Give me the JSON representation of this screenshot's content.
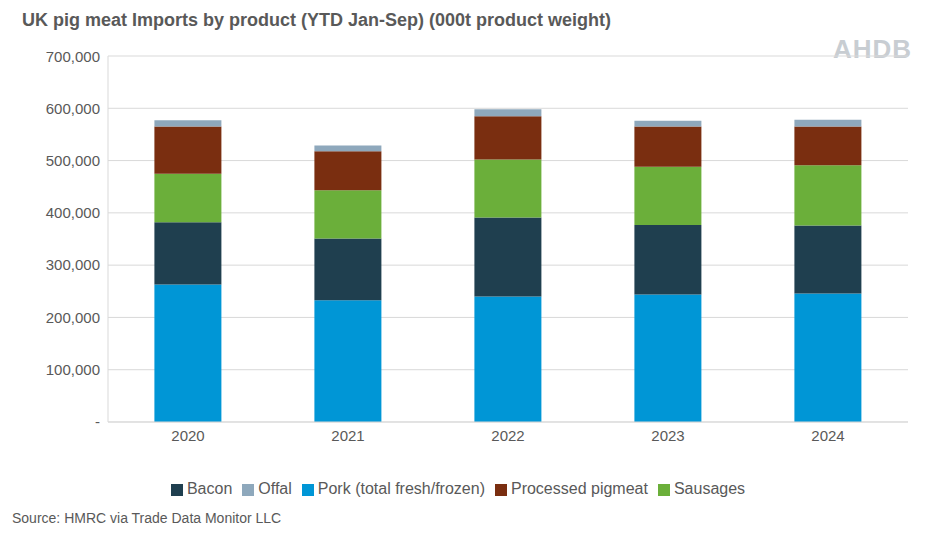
{
  "chart_data": {
    "type": "bar",
    "title": "UK pig meat Imports by product (YTD Jan-Sep) (000t product weight)",
    "logo": "AHDB",
    "source": "Source: HMRC via Trade Data Monitor LLC",
    "stacked": true,
    "grid": true,
    "legend": "bottom",
    "categories": [
      "2020",
      "2021",
      "2022",
      "2023",
      "2024"
    ],
    "series": [
      {
        "name": "Pork (total fresh/frozen)",
        "color": "#0096D6",
        "values": [
          263000,
          233000,
          240000,
          244000,
          246000
        ]
      },
      {
        "name": "Bacon",
        "color": "#1F3F4F",
        "values": [
          119000,
          118000,
          151000,
          133000,
          130000
        ]
      },
      {
        "name": "Sausages",
        "color": "#6BAF3A",
        "values": [
          93000,
          92000,
          111000,
          111000,
          115000
        ]
      },
      {
        "name": "Processed pigmeat",
        "color": "#7A2E10",
        "values": [
          90000,
          75000,
          83000,
          77000,
          74000
        ]
      },
      {
        "name": "Offal",
        "color": "#8EA8BC",
        "values": [
          12000,
          11000,
          13000,
          11000,
          13000
        ]
      }
    ],
    "ylim": [
      0,
      700000
    ],
    "yticks": [
      {
        "value": 0,
        "label": "-"
      },
      {
        "value": 100000,
        "label": "100,000"
      },
      {
        "value": 200000,
        "label": "200,000"
      },
      {
        "value": 300000,
        "label": "300,000"
      },
      {
        "value": 400000,
        "label": "400,000"
      },
      {
        "value": 500000,
        "label": "500,000"
      },
      {
        "value": 600000,
        "label": "600,000"
      },
      {
        "value": 700000,
        "label": "700,000"
      }
    ]
  }
}
